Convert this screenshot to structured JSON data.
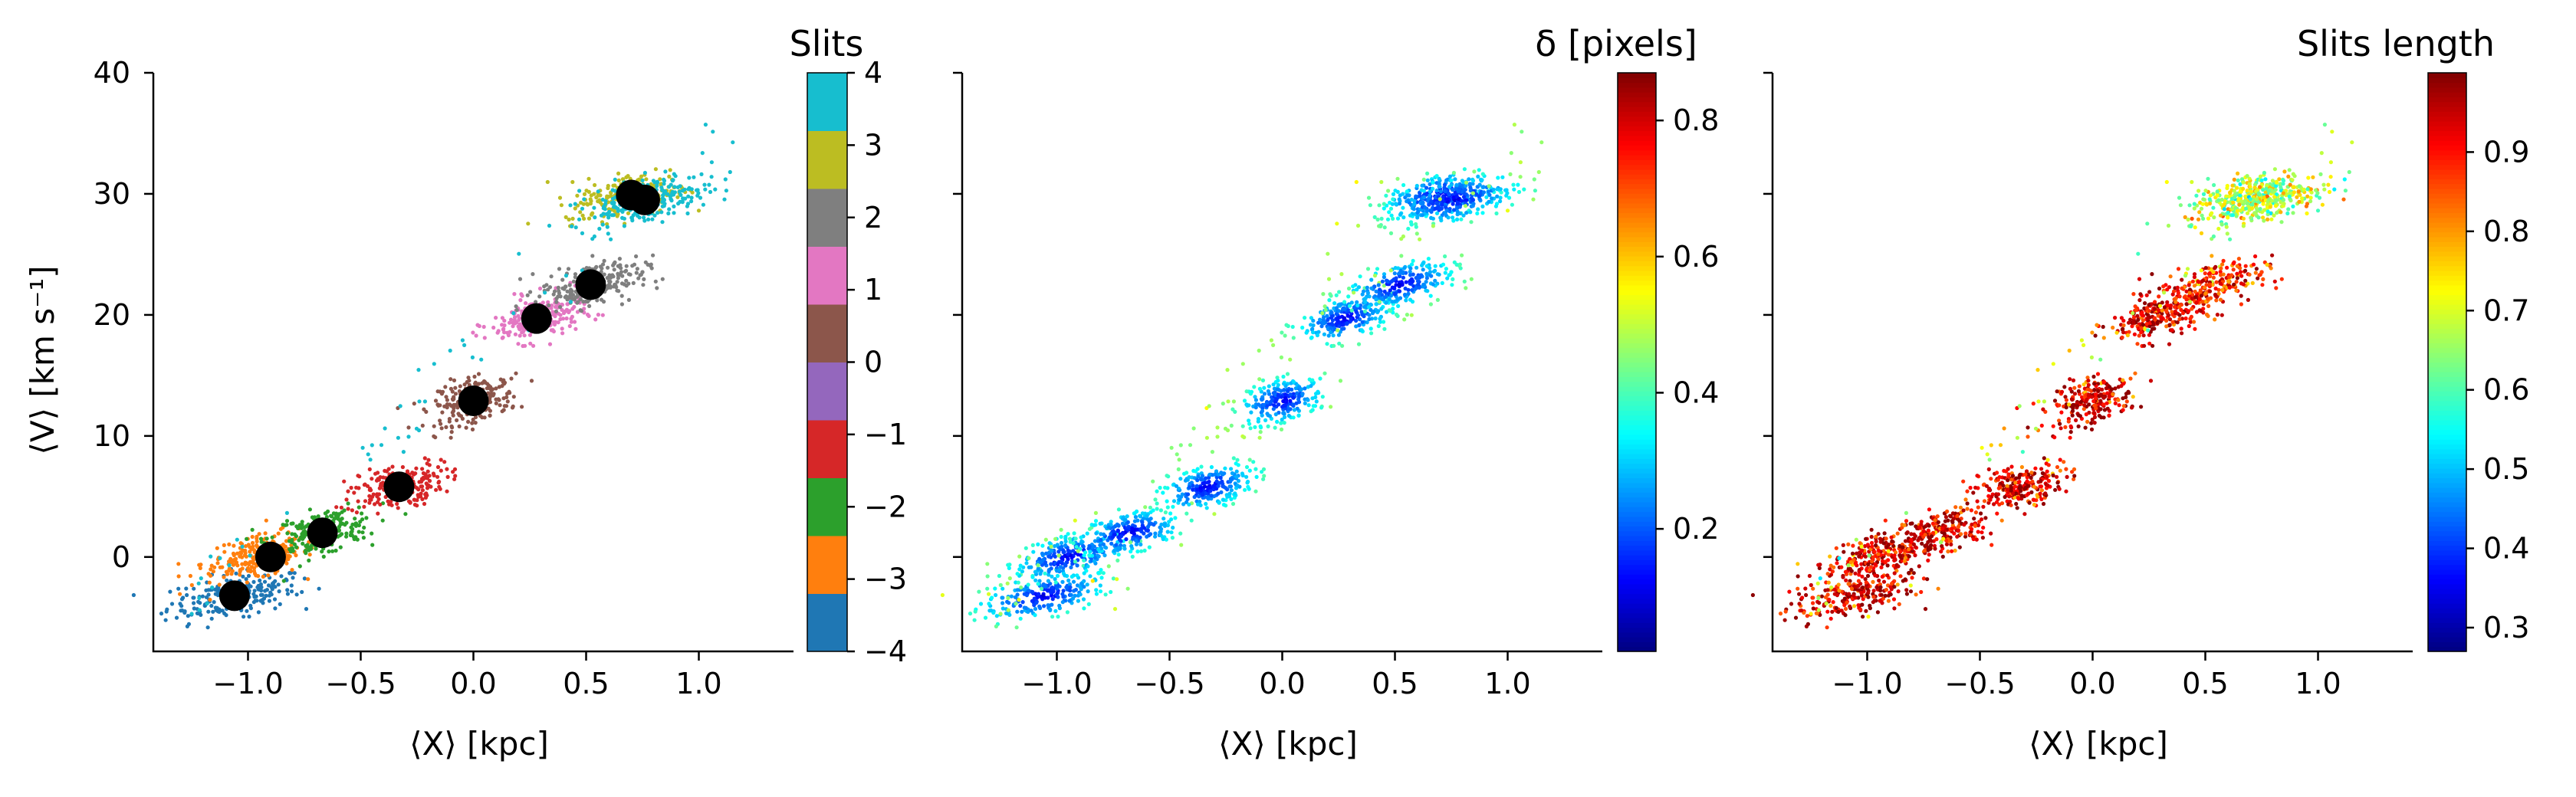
{
  "chart_data": [
    {
      "type": "scatter",
      "panel": "left",
      "xlabel": "⟨X⟩ [kpc]",
      "ylabel": "⟨V⟩ [km s⁻¹]",
      "xlim": [
        -1.42,
        1.42
      ],
      "ylim": [
        -7.8,
        40
      ],
      "xticks": [
        -1.0,
        -0.5,
        0.0,
        0.5,
        1.0
      ],
      "xtick_labels": [
        "−1.0",
        "−0.5",
        "0.0",
        "0.5",
        "1.0"
      ],
      "yticks": [
        0,
        10,
        20,
        30,
        40
      ],
      "ytick_labels": [
        "0",
        "10",
        "20",
        "30",
        "40"
      ],
      "colorbar": {
        "title": "Slits",
        "type": "discrete",
        "colormap": "tab10",
        "range": [
          -4,
          4
        ],
        "ticks": [
          -4,
          -3,
          -2,
          -1,
          0,
          1,
          2,
          3,
          4
        ],
        "tick_labels": [
          "−4",
          "−3",
          "−2",
          "−1",
          "0",
          "1",
          "2",
          "3",
          "4"
        ],
        "colors": [
          "#1f77b4",
          "#ff7f0e",
          "#2ca02c",
          "#d62728",
          "#9467bd",
          "#8c564b",
          "#e377c2",
          "#7f7f7f",
          "#bcbd22",
          "#17becf"
        ]
      },
      "clusters": [
        {
          "slit": -4,
          "color": "#1f77b4",
          "x": -1.06,
          "y": -3.2
        },
        {
          "slit": -3,
          "color": "#ff7f0e",
          "x": -0.95,
          "y": 0.0
        },
        {
          "slit": -2,
          "color": "#2ca02c",
          "x": -0.68,
          "y": 2.0
        },
        {
          "slit": -1,
          "color": "#d62728",
          "x": -0.33,
          "y": 5.8
        },
        {
          "slit": 0,
          "color": "#8c564b",
          "x": 0.0,
          "y": 12.9
        },
        {
          "slit": 1,
          "color": "#e377c2",
          "x": 0.28,
          "y": 19.7
        },
        {
          "slit": 2,
          "color": "#7f7f7f",
          "x": 0.52,
          "y": 22.5
        },
        {
          "slit": 3,
          "color": "#bcbd22",
          "x": 0.7,
          "y": 29.9
        },
        {
          "slit": 4,
          "color": "#17becf",
          "x": 0.76,
          "y": 29.5
        }
      ],
      "mean_points": [
        {
          "x": -1.06,
          "y": -3.2
        },
        {
          "x": -0.9,
          "y": 0.0
        },
        {
          "x": -0.67,
          "y": 2.0
        },
        {
          "x": -0.33,
          "y": 5.8
        },
        {
          "x": 0.0,
          "y": 12.9
        },
        {
          "x": 0.28,
          "y": 19.7
        },
        {
          "x": 0.52,
          "y": 22.5
        },
        {
          "x": 0.7,
          "y": 29.9
        },
        {
          "x": 0.76,
          "y": 29.5
        }
      ]
    },
    {
      "type": "scatter",
      "panel": "middle",
      "xlabel": "⟨X⟩ [kpc]",
      "xlim": [
        -1.42,
        1.42
      ],
      "ylim": [
        -7.8,
        40
      ],
      "xticks": [
        -1.0,
        -0.5,
        0.0,
        0.5,
        1.0
      ],
      "xtick_labels": [
        "−1.0",
        "−0.5",
        "0.0",
        "0.5",
        "1.0"
      ],
      "colorbar": {
        "title": "δ [pixels]",
        "colormap": "jet",
        "range": [
          0.02,
          0.87
        ],
        "ticks": [
          0.2,
          0.4,
          0.6,
          0.8
        ],
        "tick_labels": [
          "0.2",
          "0.4",
          "0.6",
          "0.8"
        ]
      },
      "value_summary": "mostly low δ (0.1–0.3) at cluster centres, higher δ (0.5–0.8) at cluster edges"
    },
    {
      "type": "scatter",
      "panel": "right",
      "xlabel": "⟨X⟩ [kpc]",
      "xlim": [
        -1.42,
        1.42
      ],
      "ylim": [
        -7.8,
        40
      ],
      "xticks": [
        -1.0,
        -0.5,
        0.0,
        0.5,
        1.0
      ],
      "xtick_labels": [
        "−1.0",
        "−0.5",
        "0.0",
        "0.5",
        "1.0"
      ],
      "colorbar": {
        "title": "Slits length",
        "colormap": "jet",
        "range": [
          0.27,
          1.0
        ],
        "ticks": [
          0.3,
          0.4,
          0.5,
          0.6,
          0.7,
          0.8,
          0.9
        ],
        "tick_labels": [
          "0.3",
          "0.4",
          "0.5",
          "0.6",
          "0.7",
          "0.8",
          "0.9"
        ]
      },
      "value_summary": "most points red (0.85–0.99); outermost slits (3, 4) lower, ~0.6–0.8"
    }
  ]
}
